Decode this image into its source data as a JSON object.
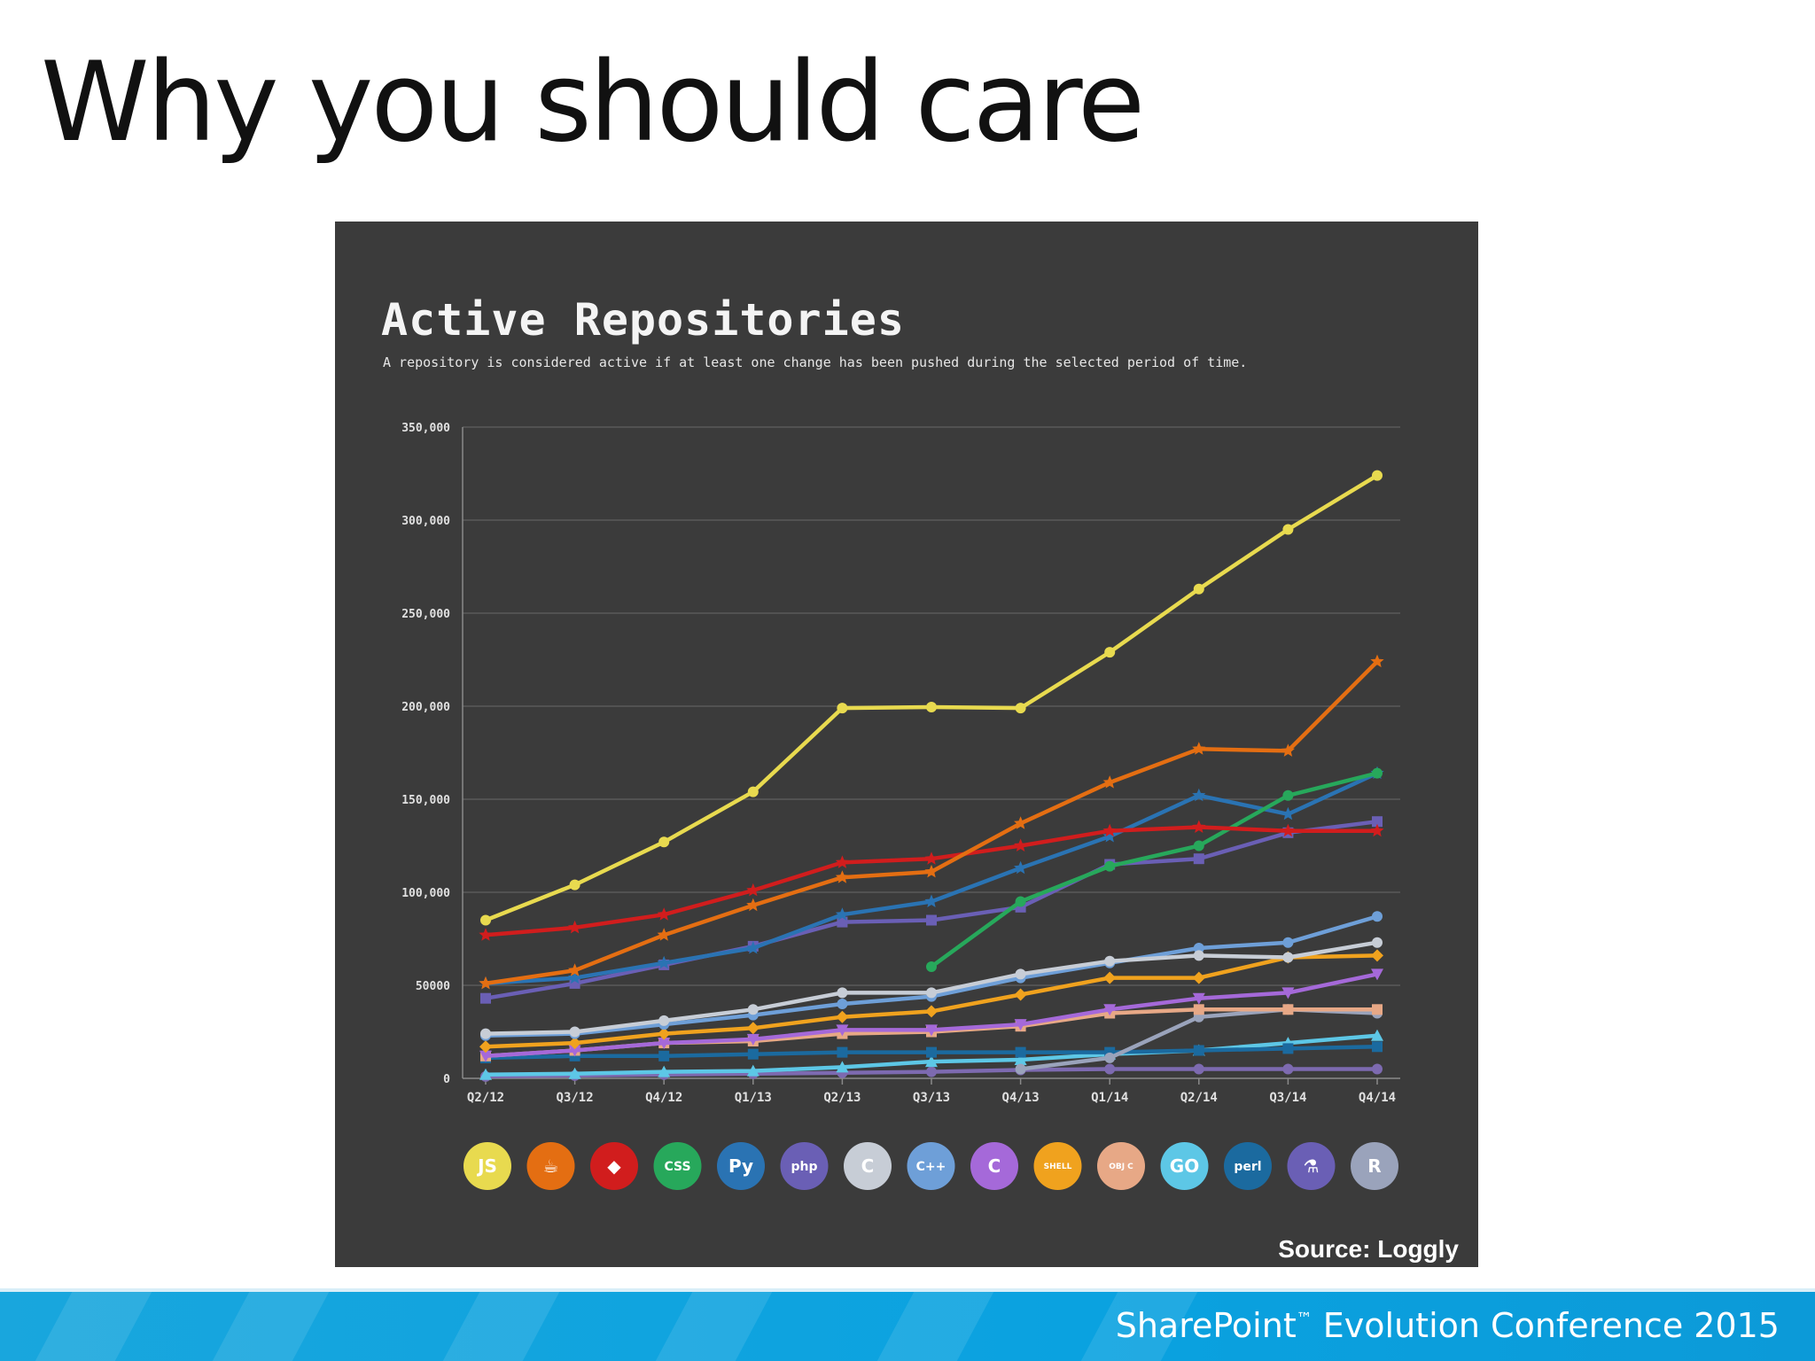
{
  "slide": {
    "title": "Why you should care",
    "source": "Source: Loggly",
    "footer_brand": "SharePoint",
    "footer_tm": "™",
    "footer_event": " Evolution Conference 2015"
  },
  "chart_data": {
    "type": "line",
    "title": "Active Repositories",
    "subtitle": "A repository is considered active if at least one change has been pushed during the selected period of time.",
    "xlabel": "",
    "ylabel": "",
    "ylim": [
      0,
      350000
    ],
    "y_ticks": [
      0,
      50000,
      100000,
      150000,
      200000,
      250000,
      300000,
      350000
    ],
    "y_tick_labels": [
      "0",
      "50000",
      "100,000",
      "150,000",
      "200,000",
      "250,000",
      "300,000",
      "350,000"
    ],
    "grid": true,
    "categories": [
      "Q2/12",
      "Q3/12",
      "Q4/12",
      "Q1/13",
      "Q2/13",
      "Q3/13",
      "Q4/13",
      "Q1/14",
      "Q2/14",
      "Q3/14",
      "Q4/14"
    ],
    "series": [
      {
        "color": "#e8da4f",
        "marker": "circle",
        "values": [
          85000,
          104000,
          127000,
          154000,
          199000,
          199500,
          199000,
          229000,
          263000,
          295000,
          324000
        ]
      },
      {
        "color": "#e46e12",
        "marker": "star",
        "values": [
          51000,
          58000,
          77000,
          93000,
          108000,
          111000,
          137000,
          159000,
          177000,
          176000,
          224000
        ]
      },
      {
        "color": "#d11d1d",
        "marker": "star",
        "values": [
          77000,
          81000,
          88000,
          101000,
          116000,
          118000,
          125000,
          133000,
          135000,
          133000,
          133000
        ]
      },
      {
        "color": "#27a85b",
        "marker": "circle",
        "values": [
          null,
          null,
          null,
          null,
          null,
          60000,
          95000,
          114000,
          125000,
          152000,
          164000
        ]
      },
      {
        "color": "#2a73b3",
        "marker": "star",
        "values": [
          51000,
          54000,
          62000,
          70000,
          88000,
          95000,
          113000,
          130000,
          152000,
          142000,
          164000
        ]
      },
      {
        "color": "#6a5fb5",
        "marker": "square",
        "values": [
          43000,
          51000,
          61000,
          71000,
          84000,
          85000,
          92000,
          115000,
          118000,
          132000,
          138000
        ]
      },
      {
        "color": "#c7cdd6",
        "marker": "circle",
        "values": [
          24000,
          25000,
          31000,
          37000,
          46000,
          46000,
          56000,
          63000,
          66000,
          65000,
          73000
        ]
      },
      {
        "color": "#6e9fd8",
        "marker": "circle",
        "values": [
          23000,
          24000,
          29000,
          34000,
          40000,
          44000,
          54000,
          62000,
          70000,
          73000,
          87000
        ]
      },
      {
        "color": "#f0a21e",
        "marker": "diamond",
        "values": [
          17000,
          19000,
          24000,
          27000,
          33000,
          36000,
          45000,
          54000,
          54000,
          65000,
          66000
        ]
      },
      {
        "color": "#a569d9",
        "marker": "triangle-down",
        "values": [
          12000,
          15000,
          19000,
          21000,
          26000,
          26000,
          29000,
          37000,
          43000,
          46000,
          56000
        ]
      },
      {
        "color": "#e7a886",
        "marker": "square",
        "values": [
          12000,
          15000,
          19000,
          20000,
          24000,
          25000,
          28000,
          35000,
          37000,
          37000,
          37000
        ]
      },
      {
        "color": "#9aa3bb",
        "marker": "circle",
        "values": [
          null,
          null,
          null,
          null,
          null,
          null,
          5000,
          11000,
          33000,
          37000,
          35000
        ]
      },
      {
        "color": "#1b6a9f",
        "marker": "square",
        "values": [
          11000,
          12000,
          12000,
          13000,
          14000,
          14000,
          14000,
          14000,
          15000,
          16000,
          17000
        ]
      },
      {
        "color": "#5dc7e6",
        "marker": "triangle-up",
        "values": [
          2000,
          2500,
          3500,
          4000,
          6000,
          9000,
          10000,
          13000,
          15000,
          19000,
          23000
        ]
      },
      {
        "color": "#7d6ab0",
        "marker": "circle",
        "values": [
          1000,
          1500,
          2000,
          2500,
          3000,
          3500,
          4500,
          5000,
          5000,
          5000,
          5000
        ]
      }
    ],
    "legend_position": "bottom",
    "legend_icons": [
      {
        "name": "js-logo-icon",
        "color": "#e8da4f",
        "glyph": "JS",
        "text_color": "#ffffff"
      },
      {
        "name": "java-logo-icon",
        "color": "#e46e12",
        "glyph": "☕",
        "text_color": "#ffffff"
      },
      {
        "name": "ruby-logo-icon",
        "color": "#d11d1d",
        "glyph": "◆",
        "text_color": "#ffffff"
      },
      {
        "name": "css-logo-icon",
        "color": "#27a85b",
        "glyph": "CSS",
        "text_color": "#ffffff"
      },
      {
        "name": "python-logo-icon",
        "color": "#2a73b3",
        "glyph": "Py",
        "text_color": "#ffffff"
      },
      {
        "name": "php-logo-icon",
        "color": "#6a5fb5",
        "glyph": "php",
        "text_color": "#ffffff"
      },
      {
        "name": "c-logo-icon",
        "color": "#c7cdd6",
        "glyph": "C",
        "text_color": "#ffffff"
      },
      {
        "name": "cpp-logo-icon",
        "color": "#6e9fd8",
        "glyph": "C++",
        "text_color": "#ffffff"
      },
      {
        "name": "csharp-logo-icon",
        "color": "#a569d9",
        "glyph": "C",
        "text_color": "#ffffff"
      },
      {
        "name": "shell-logo-icon",
        "color": "#f0a21e",
        "glyph": "SHELL",
        "text_color": "#ffffff"
      },
      {
        "name": "objc-logo-icon",
        "color": "#e7a886",
        "glyph": "OBJ C",
        "text_color": "#ffffff"
      },
      {
        "name": "go-logo-icon",
        "color": "#5dc7e6",
        "glyph": "GO",
        "text_color": "#ffffff"
      },
      {
        "name": "perl-logo-icon",
        "color": "#1b6a9f",
        "glyph": "perl",
        "text_color": "#ffffff"
      },
      {
        "name": "flask-logo-icon",
        "color": "#6a5fb5",
        "glyph": "⚗",
        "text_color": "#ffffff"
      },
      {
        "name": "r-logo-icon",
        "color": "#9aa3bb",
        "glyph": "R",
        "text_color": "#ffffff"
      }
    ]
  }
}
